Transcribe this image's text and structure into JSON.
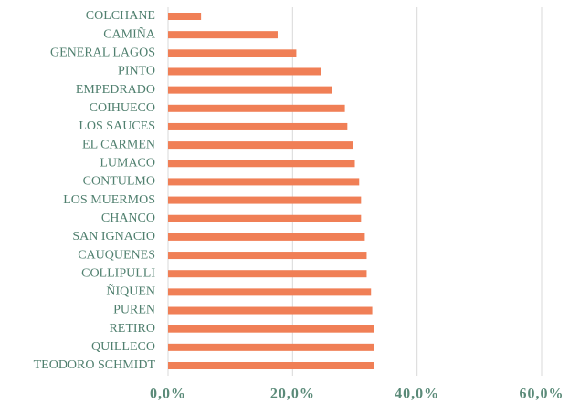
{
  "chart_data": {
    "type": "bar",
    "orientation": "horizontal",
    "categories": [
      "COLCHANE",
      "CAMIÑA",
      "GENERAL LAGOS",
      "PINTO",
      "EMPEDRADO",
      "COIHUECO",
      "LOS SAUCES",
      "EL CARMEN",
      "LUMACO",
      "CONTULMO",
      "LOS MUERMOS",
      "CHANCO",
      "SAN IGNACIO",
      "CAUQUENES",
      "COLLIPULLI",
      "ÑIQUEN",
      "PUREN",
      "RETIRO",
      "QUILLECO",
      "TEODORO SCHMIDT"
    ],
    "values": [
      5.3,
      17.6,
      20.6,
      24.6,
      26.4,
      28.4,
      28.8,
      29.7,
      30.0,
      30.7,
      31.0,
      31.0,
      31.6,
      31.9,
      31.9,
      32.6,
      32.8,
      33.1,
      33.1,
      33.1
    ],
    "color": "#f07f56",
    "xlim": [
      0,
      60
    ],
    "xticks": [
      {
        "value": 0,
        "label": "0,0%"
      },
      {
        "value": 20,
        "label": "20,0%"
      },
      {
        "value": 40,
        "label": "40,0%"
      },
      {
        "value": 60,
        "label": "60,0%"
      }
    ],
    "grid": true
  }
}
